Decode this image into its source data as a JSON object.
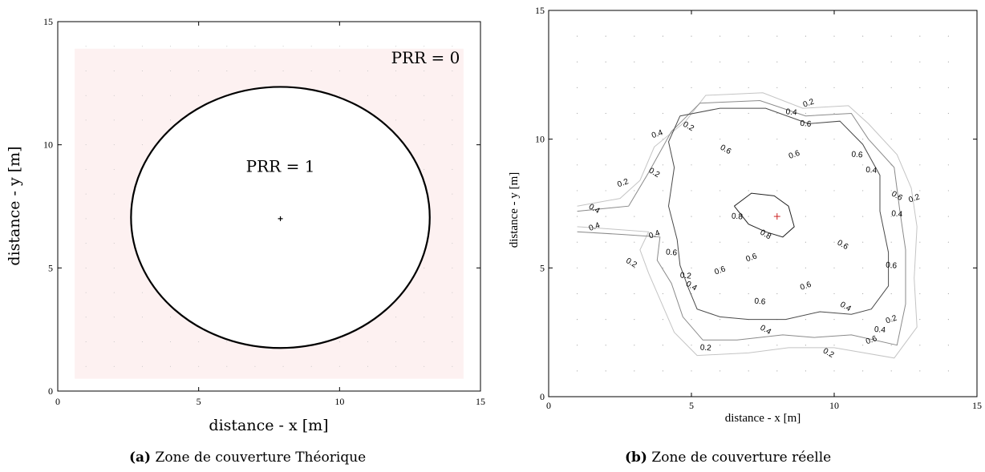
{
  "colors": {
    "shade": "#fdf1f1",
    "circle": "#000000",
    "contour": "#666666",
    "source": "#cc2222"
  },
  "chart_data": [
    {
      "type": "area",
      "xlabel": "distance - x [m]",
      "ylabel": "distance - y [m]",
      "xlim": [
        0,
        15
      ],
      "ylim": [
        0,
        15
      ],
      "xticks": [
        0,
        5,
        10,
        15
      ],
      "yticks": [
        0,
        5,
        10,
        15
      ],
      "zone": {
        "x": [
          0.6,
          14.4
        ],
        "y": [
          0.5,
          13.9
        ]
      },
      "circle": {
        "center": [
          7.9,
          7.05
        ],
        "radius": 5.3
      },
      "source": [
        7.9,
        7.0
      ],
      "annotations": [
        {
          "text": "PRR = 0",
          "x": 13.05,
          "y": 13.3
        },
        {
          "text": "PRR = 1",
          "x": 7.9,
          "y": 8.9
        }
      ],
      "caption": {
        "label": "(a)",
        "text": "Zone de couverture Théorique"
      }
    },
    {
      "type": "line",
      "xlabel": "distance - x [m]",
      "ylabel": "distance - y [m]",
      "xlim": [
        0,
        15
      ],
      "ylim": [
        0,
        15
      ],
      "xticks": [
        0,
        5,
        10,
        15
      ],
      "yticks": [
        0,
        5,
        10,
        15
      ],
      "source": [
        8,
        7
      ],
      "series": [
        {
          "level": 0.2,
          "points": [
            [
              1,
              7.4
            ],
            [
              2.5,
              7.7
            ],
            [
              3.2,
              8.4
            ],
            [
              3.7,
              9.7
            ],
            [
              4.8,
              10.7
            ],
            [
              5.5,
              11.7
            ],
            [
              7.5,
              11.8
            ],
            [
              8.9,
              11.2
            ],
            [
              10.5,
              11.3
            ],
            [
              11.2,
              10.6
            ],
            [
              12.2,
              9.4
            ],
            [
              12.7,
              8.1
            ],
            [
              12.9,
              6.6
            ],
            [
              12.8,
              4.6
            ],
            [
              12.9,
              2.7
            ],
            [
              12.1,
              1.5
            ],
            [
              10,
              1.9
            ],
            [
              8.4,
              1.9
            ],
            [
              7,
              1.7
            ],
            [
              5.2,
              1.6
            ],
            [
              4.4,
              2.5
            ],
            [
              3.5,
              4.8
            ],
            [
              3.2,
              5.7
            ],
            [
              3.5,
              6.4
            ],
            [
              2.3,
              6.5
            ],
            [
              1,
              6.6
            ]
          ]
        },
        {
          "level": 0.4,
          "points": [
            [
              1,
              7.2
            ],
            [
              2.8,
              7.4
            ],
            [
              3.5,
              8.7
            ],
            [
              4.3,
              10.3
            ],
            [
              5.3,
              11.4
            ],
            [
              7.4,
              11.5
            ],
            [
              9,
              10.9
            ],
            [
              10.6,
              11
            ],
            [
              11.2,
              10
            ],
            [
              12.1,
              8.9
            ],
            [
              12.3,
              7.2
            ],
            [
              12.5,
              5.7
            ],
            [
              12.5,
              3.6
            ],
            [
              12.2,
              2
            ],
            [
              10.6,
              2.4
            ],
            [
              9.3,
              2.3
            ],
            [
              8.2,
              2.4
            ],
            [
              6.6,
              2.2
            ],
            [
              5.4,
              2.2
            ],
            [
              4.7,
              3.1
            ],
            [
              4.3,
              4.4
            ],
            [
              3.8,
              5.3
            ],
            [
              3.9,
              6.2
            ],
            [
              2.6,
              6.3
            ],
            [
              1,
              6.4
            ]
          ]
        },
        {
          "level": 0.6,
          "points": [
            [
              4.6,
              10.9
            ],
            [
              6,
              11.2
            ],
            [
              7.6,
              11.2
            ],
            [
              9.1,
              10.6
            ],
            [
              10.2,
              10.7
            ],
            [
              11,
              9.8
            ],
            [
              11.6,
              8.6
            ],
            [
              11.6,
              7.2
            ],
            [
              11.9,
              5.6
            ],
            [
              11.9,
              4.3
            ],
            [
              11.3,
              3.4
            ],
            [
              10.6,
              3.2
            ],
            [
              9.5,
              3.3
            ],
            [
              8.3,
              3
            ],
            [
              7,
              3
            ],
            [
              6,
              3.1
            ],
            [
              5.2,
              3.4
            ],
            [
              4.9,
              4.2
            ],
            [
              4.6,
              5.1
            ],
            [
              4.5,
              6.1
            ],
            [
              4.2,
              7.4
            ],
            [
              4.4,
              8.9
            ],
            [
              4.2,
              9.9
            ],
            [
              4.6,
              10.9
            ]
          ]
        },
        {
          "level": 0.8,
          "points": [
            [
              6.5,
              7.4
            ],
            [
              7.1,
              7.9
            ],
            [
              7.9,
              7.8
            ],
            [
              8.4,
              7.4
            ],
            [
              8.6,
              6.6
            ],
            [
              8.2,
              6.2
            ],
            [
              7.6,
              6.4
            ],
            [
              7,
              6.7
            ],
            [
              6.5,
              7.4
            ]
          ]
        }
      ],
      "contour_labels": [
        {
          "text": "0.2",
          "x": 9.1,
          "y": 11.4
        },
        {
          "text": "0.4",
          "x": 8.5,
          "y": 11.05
        },
        {
          "text": "0.2",
          "x": 4.9,
          "y": 10.5
        },
        {
          "text": "0.4",
          "x": 3.8,
          "y": 10.2
        },
        {
          "text": "0.6",
          "x": 9.0,
          "y": 10.6
        },
        {
          "text": "0.6",
          "x": 6.2,
          "y": 9.6
        },
        {
          "text": "0.6",
          "x": 8.6,
          "y": 9.4
        },
        {
          "text": "0.6",
          "x": 10.8,
          "y": 9.4
        },
        {
          "text": "0.2",
          "x": 3.7,
          "y": 8.7
        },
        {
          "text": "0.2",
          "x": 2.6,
          "y": 8.3
        },
        {
          "text": "0.4",
          "x": 11.3,
          "y": 8.8
        },
        {
          "text": "0.6",
          "x": 12.2,
          "y": 7.8
        },
        {
          "text": "0.2",
          "x": 12.8,
          "y": 7.7
        },
        {
          "text": "0.4",
          "x": 12.2,
          "y": 7.1
        },
        {
          "text": "0.4",
          "x": 1.6,
          "y": 7.3
        },
        {
          "text": "0.4",
          "x": 1.6,
          "y": 6.6
        },
        {
          "text": "0.8",
          "x": 6.6,
          "y": 7.0
        },
        {
          "text": "0.8",
          "x": 7.6,
          "y": 6.3
        },
        {
          "text": "0.4",
          "x": 3.7,
          "y": 6.3
        },
        {
          "text": "0.6",
          "x": 4.3,
          "y": 5.6
        },
        {
          "text": "0.6",
          "x": 10.3,
          "y": 5.9
        },
        {
          "text": "0.6",
          "x": 7.1,
          "y": 5.4
        },
        {
          "text": "0.6",
          "x": 12.0,
          "y": 5.1
        },
        {
          "text": "0.2",
          "x": 2.9,
          "y": 5.2
        },
        {
          "text": "0.6",
          "x": 6.0,
          "y": 4.9
        },
        {
          "text": "0.2",
          "x": 4.8,
          "y": 4.7
        },
        {
          "text": "0.4",
          "x": 5.0,
          "y": 4.3
        },
        {
          "text": "0.6",
          "x": 9.0,
          "y": 4.3
        },
        {
          "text": "0.6",
          "x": 7.4,
          "y": 3.7
        },
        {
          "text": "0.4",
          "x": 10.4,
          "y": 3.5
        },
        {
          "text": "0.2",
          "x": 12.0,
          "y": 3.0
        },
        {
          "text": "0.4",
          "x": 11.6,
          "y": 2.6
        },
        {
          "text": "0.4",
          "x": 7.6,
          "y": 2.6
        },
        {
          "text": "0.6",
          "x": 11.3,
          "y": 2.2
        },
        {
          "text": "0.2",
          "x": 5.5,
          "y": 1.9
        },
        {
          "text": "0.2",
          "x": 9.8,
          "y": 1.7
        }
      ],
      "caption": {
        "label": "(b)",
        "text": "Zone de couverture réelle"
      }
    }
  ]
}
